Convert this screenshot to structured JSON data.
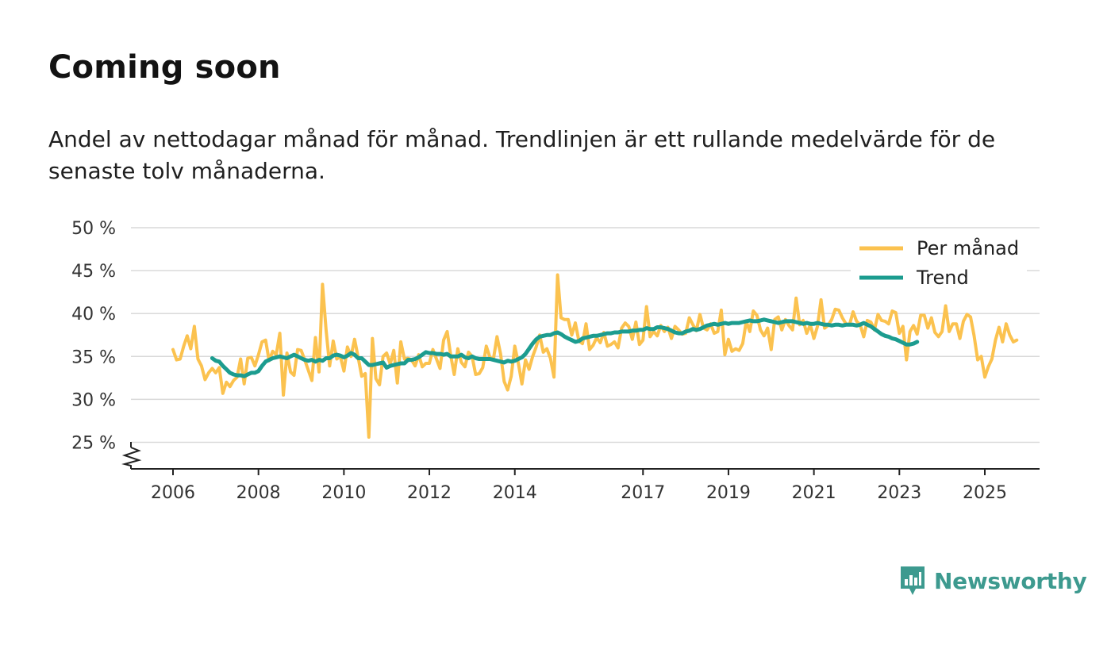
{
  "title": "Coming soon",
  "subtitle": "Andel av nettodagar månad för månad. Trendlinjen är ett rullande medelvärde för de senaste tolv månaderna.",
  "brand": {
    "name": "Newsworthy",
    "color": "#3d9a8f",
    "icon": "newsworthy-logo-icon"
  },
  "colors": {
    "monthly": "#fbc24f",
    "trend": "#1c9c8f",
    "grid": "#d9d9d9",
    "axis": "#222222"
  },
  "chart_data": {
    "type": "line",
    "title": "Coming soon",
    "xlabel": "",
    "ylabel": "",
    "ylim": [
      22,
      50
    ],
    "y_ticks": [
      25,
      30,
      35,
      40,
      45,
      50
    ],
    "y_tick_labels": [
      "25 %",
      "30 %",
      "35 %",
      "40 %",
      "45 %",
      "50 %"
    ],
    "y_axis_break": true,
    "x_ticks": [
      2006,
      2008,
      2010,
      2012,
      2014,
      2017,
      2019,
      2021,
      2023,
      2025
    ],
    "x_tick_labels": [
      "2006",
      "2008",
      "2010",
      "2012",
      "2014",
      "2017",
      "2019",
      "2021",
      "2023",
      "2025"
    ],
    "xlim": [
      2005.0,
      2026.3
    ],
    "legend_position": "top-right",
    "series": [
      {
        "name": "Per månad",
        "x_start": 2006.0,
        "x_step": 0.08333,
        "values": [
          35.8,
          34.6,
          34.7,
          36.2,
          37.4,
          35.9,
          38.5,
          34.7,
          33.9,
          32.3,
          33.1,
          33.6,
          33.1,
          33.7,
          30.7,
          32.0,
          31.5,
          32.2,
          32.6,
          34.7,
          31.8,
          34.8,
          34.9,
          33.9,
          35.2,
          36.7,
          36.9,
          34.5,
          35.6,
          35.2,
          37.7,
          30.5,
          35.4,
          33.2,
          32.8,
          35.8,
          35.7,
          34.6,
          33.4,
          32.2,
          37.2,
          33.2,
          43.4,
          38.1,
          33.9,
          36.8,
          34.7,
          35.0,
          33.3,
          36.1,
          35.0,
          37.0,
          34.9,
          32.7,
          33.0,
          25.6,
          37.1,
          32.4,
          31.7,
          35.0,
          35.4,
          34.1,
          35.7,
          31.9,
          36.7,
          34.7,
          34.8,
          34.6,
          33.9,
          35.2,
          33.8,
          34.2,
          34.2,
          35.8,
          34.7,
          33.6,
          36.9,
          37.9,
          35.1,
          32.9,
          35.9,
          34.3,
          33.8,
          35.5,
          35.0,
          32.9,
          33.0,
          33.7,
          36.2,
          34.9,
          34.7,
          37.3,
          35.3,
          32.1,
          31.1,
          32.7,
          36.2,
          34.2,
          31.8,
          34.6,
          33.5,
          35.0,
          36.1,
          37.5,
          35.5,
          35.9,
          34.8,
          32.6,
          44.5,
          39.5,
          39.3,
          39.3,
          37.5,
          38.9,
          36.8,
          36.5,
          38.8,
          35.8,
          36.3,
          37.2,
          36.6,
          37.8,
          36.2,
          36.4,
          36.7,
          36.0,
          38.3,
          38.9,
          38.5,
          37.0,
          39.0,
          36.4,
          36.9,
          40.8,
          37.3,
          37.9,
          37.4,
          38.6,
          37.9,
          38.4,
          37.1,
          38.5,
          38.1,
          37.6,
          37.7,
          39.5,
          38.7,
          38.0,
          39.9,
          38.3,
          38.1,
          38.8,
          37.7,
          37.9,
          40.4,
          35.2,
          37.0,
          35.6,
          35.9,
          35.7,
          36.5,
          39.1,
          37.9,
          40.3,
          39.8,
          38.1,
          37.4,
          38.3,
          35.8,
          39.3,
          39.6,
          38.1,
          39.3,
          38.6,
          38.1,
          41.8,
          38.7,
          39.2,
          37.7,
          38.7,
          37.1,
          38.5,
          41.6,
          38.3,
          38.6,
          39.3,
          40.5,
          40.4,
          39.5,
          38.8,
          38.7,
          40.2,
          39.1,
          38.7,
          37.3,
          39.2,
          39.0,
          38.1,
          39.9,
          39.2,
          39.1,
          38.8,
          40.3,
          40.1,
          37.7,
          38.5,
          34.6,
          37.9,
          38.6,
          37.6,
          39.8,
          39.8,
          38.3,
          39.5,
          37.8,
          37.3,
          37.9,
          40.9,
          37.9,
          38.8,
          38.8,
          37.1,
          39.1,
          39.9,
          39.6,
          37.4,
          34.6,
          35.0,
          32.6,
          33.8,
          34.7,
          36.9,
          38.4,
          36.7,
          38.8,
          37.5,
          36.7,
          36.9
        ]
      },
      {
        "name": "Trend",
        "x_start": 2006.917,
        "x_step": 0.08333,
        "values": [
          34.8,
          34.5,
          34.4,
          33.9,
          33.5,
          33.1,
          32.9,
          32.8,
          32.8,
          32.7,
          32.9,
          33.1,
          33.1,
          33.3,
          33.9,
          34.4,
          34.6,
          34.8,
          34.9,
          35.0,
          34.9,
          34.8,
          35.0,
          35.2,
          35.0,
          34.8,
          34.6,
          34.5,
          34.6,
          34.4,
          34.6,
          34.5,
          34.8,
          34.8,
          35.1,
          35.2,
          35.1,
          34.9,
          35.1,
          35.4,
          35.2,
          34.8,
          34.8,
          34.4,
          34.0,
          34.0,
          34.1,
          34.2,
          34.3,
          33.7,
          33.9,
          34.0,
          34.1,
          34.2,
          34.2,
          34.6,
          34.6,
          34.7,
          34.9,
          35.2,
          35.5,
          35.4,
          35.4,
          35.3,
          35.3,
          35.2,
          35.3,
          35.0,
          35.0,
          35.0,
          35.2,
          34.9,
          34.8,
          35.0,
          34.8,
          34.7,
          34.7,
          34.7,
          34.7,
          34.6,
          34.5,
          34.4,
          34.3,
          34.5,
          34.4,
          34.5,
          34.7,
          34.9,
          35.3,
          35.9,
          36.5,
          37.0,
          37.3,
          37.4,
          37.5,
          37.5,
          37.7,
          37.8,
          37.6,
          37.3,
          37.1,
          36.9,
          36.7,
          36.8,
          37.1,
          37.2,
          37.3,
          37.4,
          37.4,
          37.5,
          37.6,
          37.7,
          37.7,
          37.8,
          37.8,
          37.9,
          37.9,
          37.9,
          38.0,
          38.0,
          38.1,
          38.1,
          38.3,
          38.2,
          38.2,
          38.4,
          38.4,
          38.3,
          38.2,
          38.0,
          37.8,
          37.7,
          37.7,
          37.9,
          38.0,
          38.2,
          38.1,
          38.2,
          38.4,
          38.6,
          38.7,
          38.8,
          38.7,
          38.8,
          38.9,
          38.8,
          38.9,
          38.9,
          38.9,
          39.0,
          39.1,
          39.2,
          39.1,
          39.1,
          39.2,
          39.3,
          39.2,
          39.1,
          39.0,
          38.9,
          39.0,
          39.1,
          39.1,
          39.1,
          39.0,
          38.9,
          38.8,
          38.9,
          38.8,
          38.8,
          38.9,
          38.8,
          38.7,
          38.7,
          38.6,
          38.7,
          38.7,
          38.6,
          38.7,
          38.7,
          38.7,
          38.6,
          38.7,
          38.9,
          38.7,
          38.5,
          38.2,
          37.9,
          37.6,
          37.4,
          37.3,
          37.1,
          37.0,
          36.8,
          36.6,
          36.4,
          36.4,
          36.5,
          36.7
        ]
      }
    ]
  }
}
